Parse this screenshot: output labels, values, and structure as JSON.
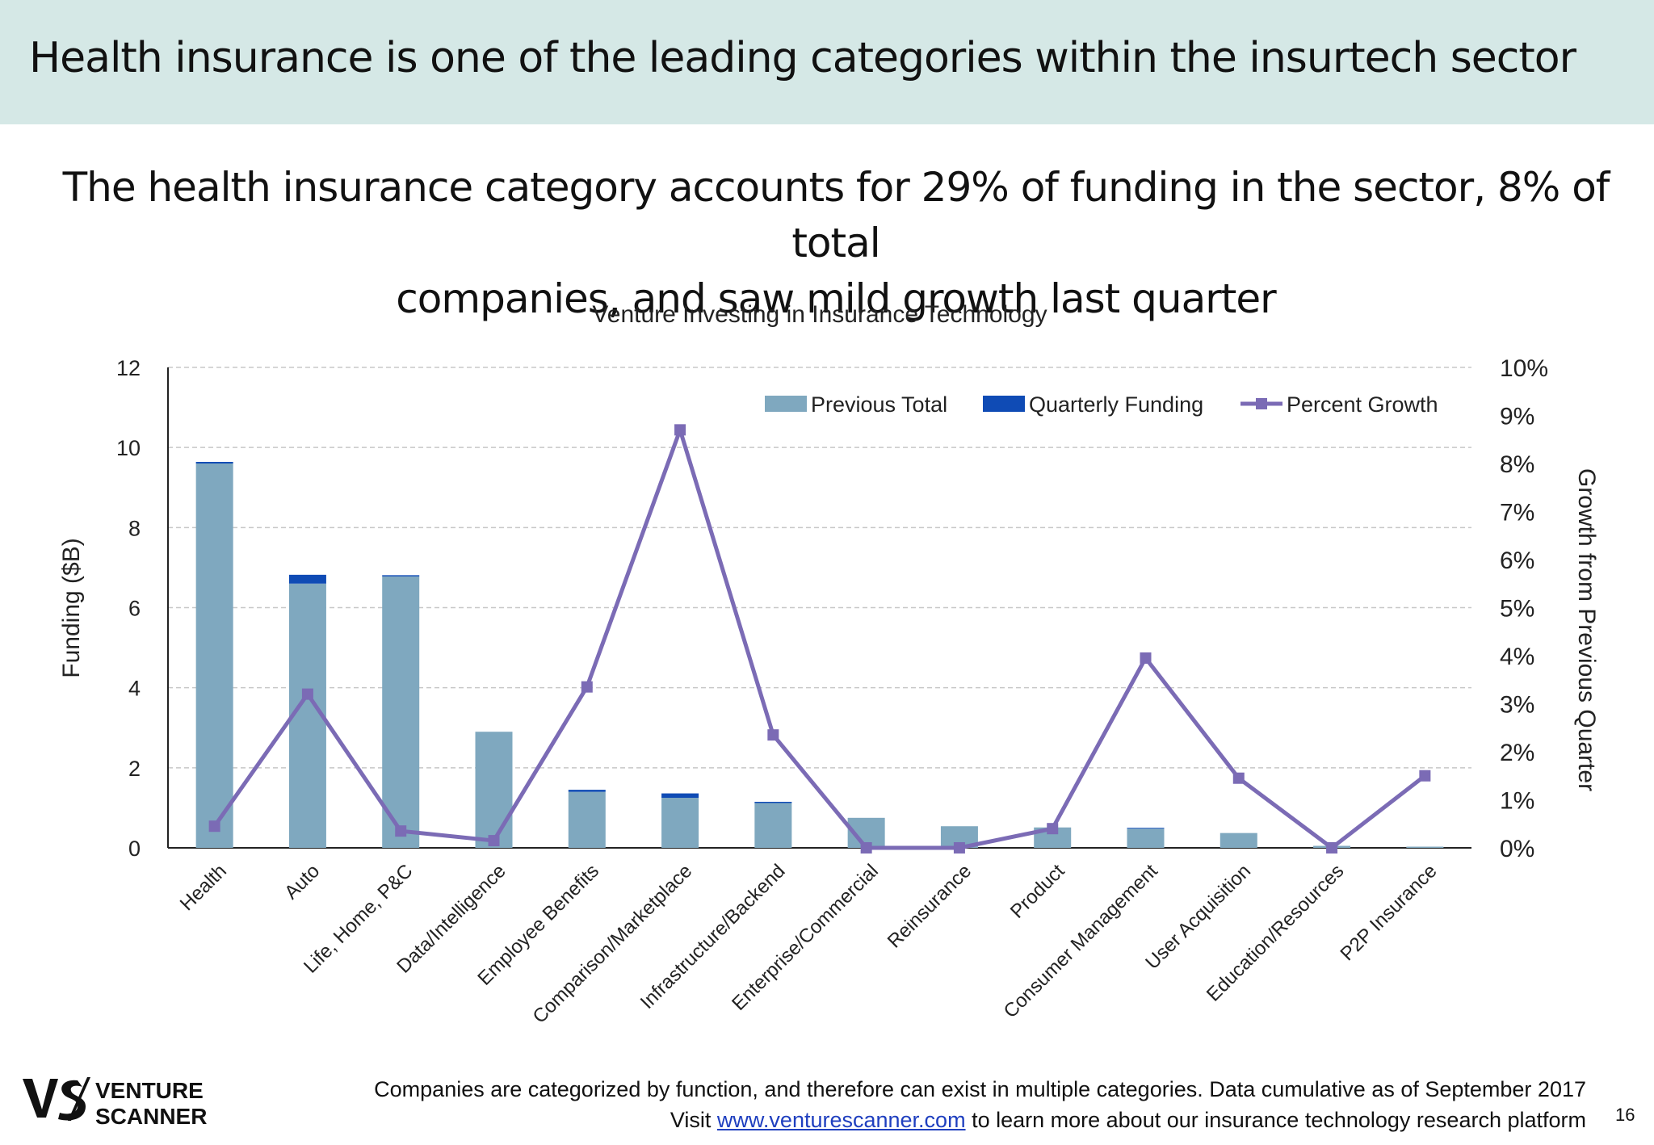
{
  "header": {
    "title": "Health insurance is one of the leading categories within the insurtech sector"
  },
  "subtitle": {
    "line1": "The health insurance category accounts for 29% of funding in the sector, 8% of total",
    "line2": "companies, and saw mild growth last quarter"
  },
  "chart_data": {
    "type": "bar",
    "title": "Venture Investing in Insurance Technology",
    "categories": [
      "Health",
      "Auto",
      "Life, Home, P&C",
      "Data/Intelligence",
      "Employee Benefits",
      "Comparison/Marketplace",
      "Infrastructure/Backend",
      "Enterprise/Commercial",
      "Reinsurance",
      "Product",
      "Consumer Management",
      "User Acquisition",
      "Education/Resources",
      "P2P Insurance"
    ],
    "stacked": true,
    "series": [
      {
        "name": "Previous Total",
        "kind": "bar",
        "axis": "left",
        "color": "#7fa8bf",
        "values": [
          9.6,
          6.6,
          6.78,
          2.9,
          1.4,
          1.25,
          1.12,
          0.75,
          0.54,
          0.51,
          0.48,
          0.37,
          0.05,
          0.03
        ]
      },
      {
        "name": "Quarterly Funding",
        "kind": "bar",
        "axis": "left",
        "color": "#0f4bb5",
        "values": [
          0.04,
          0.22,
          0.03,
          0.0,
          0.05,
          0.11,
          0.03,
          0.0,
          0.0,
          0.0,
          0.02,
          0.0,
          0.0,
          0.0
        ]
      },
      {
        "name": "Percent Growth",
        "kind": "line",
        "axis": "right",
        "color": "#7b6bb5",
        "values": [
          0.45,
          3.2,
          0.35,
          0.15,
          3.35,
          8.7,
          2.35,
          0.0,
          0.0,
          0.4,
          3.95,
          1.45,
          0.0,
          1.5
        ]
      }
    ],
    "y_left": {
      "label": "Funding ($B)",
      "ticks": [
        "0",
        "2",
        "4",
        "6",
        "8",
        "10",
        "12"
      ],
      "ylim": [
        0,
        12
      ]
    },
    "y_right": {
      "label": "Growth from Previous Quarter",
      "ticks": [
        "0%",
        "1%",
        "2%",
        "3%",
        "4%",
        "5%",
        "6%",
        "7%",
        "8%",
        "9%",
        "10%"
      ],
      "ylim": [
        0,
        10
      ]
    },
    "grid": true,
    "legend_position": "top-right"
  },
  "footer": {
    "logo_text_line1": "VENTURE",
    "logo_text_line2": "SCANNER",
    "note": "Companies are categorized by function, and therefore can exist in multiple categories. Data cumulative as of September 2017",
    "visit_prefix": "Visit",
    "visit_link": "www.venturescanner.com",
    "visit_suffix": "to learn more about our insurance technology research platform",
    "page_number": "16"
  },
  "colors": {
    "header_band": "#d5e8e6",
    "accent_line": "#7b6bb5"
  }
}
